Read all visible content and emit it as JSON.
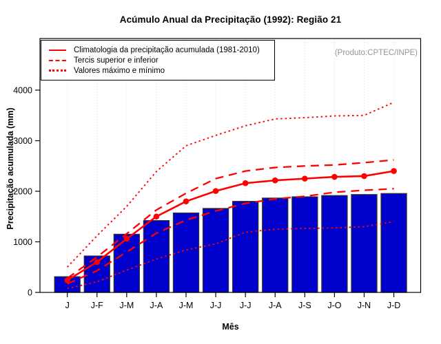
{
  "header": {
    "title": "Acúmulo Anual da Precipitação (1992): Região 21"
  },
  "annotations": {
    "source": "(Produto:CPTEC/INPE)"
  },
  "legend": {
    "position": "top-left",
    "items": [
      {
        "label": "Climatologia da precipitação acumulada (1981-2010)",
        "style": "solid"
      },
      {
        "label": "Tercis superior e inferior",
        "style": "dashed"
      },
      {
        "label": "Valores máximo e mínimo",
        "style": "dotted"
      }
    ]
  },
  "chart_data": {
    "type": "bar",
    "title": "Acúmulo Anual da Precipitação (1992): Região 21",
    "xlabel": "Mês",
    "ylabel": "Precipitação acumulada (mm)",
    "ylim": [
      0,
      4000
    ],
    "yticks": [
      0,
      1000,
      2000,
      3000,
      4000
    ],
    "grid": "vertical-dotted-lightgray",
    "legend_position": "top-left",
    "background": "#FFFFFF",
    "categories": [
      "J",
      "J-F",
      "J-M",
      "J-A",
      "J-M",
      "J-J",
      "J-J",
      "J-A",
      "J-S",
      "J-O",
      "J-N",
      "J-D"
    ],
    "bars": {
      "name": "Precipitação acumulada (1992)",
      "color": "#0000CD",
      "values": [
        310,
        720,
        1150,
        1420,
        1570,
        1660,
        1800,
        1865,
        1890,
        1915,
        1935,
        1955
      ]
    },
    "line_color": "#FF0000",
    "lines": [
      {
        "name": "Climatologia da precipitação acumulada (1981-2010)",
        "style": "solid",
        "marker": "circle",
        "values": [
          240,
          600,
          1060,
          1500,
          1800,
          2005,
          2160,
          2215,
          2250,
          2285,
          2300,
          2400
        ]
      },
      {
        "name": "Tercil superior",
        "style": "dashed",
        "marker": "none",
        "values": [
          280,
          700,
          1160,
          1630,
          1960,
          2250,
          2400,
          2470,
          2500,
          2520,
          2565,
          2620
        ]
      },
      {
        "name": "Tercil inferior",
        "style": "dashed",
        "marker": "none",
        "values": [
          170,
          430,
          800,
          1170,
          1430,
          1610,
          1760,
          1850,
          1900,
          1980,
          2020,
          2050
        ]
      },
      {
        "name": "Valor máximo",
        "style": "dotted",
        "marker": "none",
        "values": [
          500,
          1120,
          1700,
          2390,
          2900,
          3105,
          3295,
          3430,
          3455,
          3490,
          3500,
          3760
        ]
      },
      {
        "name": "Valor mínimo",
        "style": "dotted",
        "marker": "none",
        "values": [
          75,
          210,
          440,
          660,
          840,
          960,
          1190,
          1250,
          1265,
          1275,
          1300,
          1400
        ]
      }
    ]
  }
}
